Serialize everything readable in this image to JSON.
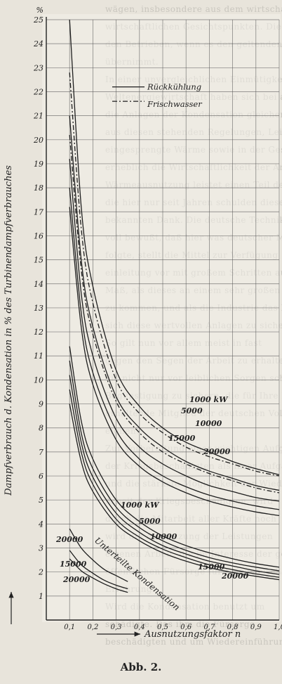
{
  "caption": "Abb. 2.",
  "background_text": [
    "wägen, insbesondere aus dem wirtschaftlichen",
    "wirtschaftlichen Gesichtspunkten. Die Ausnutzung",
    "den Betrieben, wenn es den geltenden Vorschriften",
    "übernimmt.",
    "In einer unvergleichlichen Einmütigkeit der",
    "Weltenergiewirtschaft haben sich bei allen Völkern",
    "die Anlagen der Kondensation gleichen Maßes",
    "aus diesen stehenden Regelungen, Leistungen",
    "eingesprengte Wärme sowie in der Gesamtheit",
    "erheblich die Wirtschaftlichkeit der Anlage",
    "Wärmeausnutzung leistet einen Teil der Wärme",
    "die hier nur seit Jahren schulden diesen Kreisen",
    "bekannten Dank. Die deutsche Technik ist sich",
    "voll bewußt, daß hier was deutscher Maßarbeit",
    "folgte, stellt die Mittel zur Verfügung",
    "einleitung vor mit großem Schritten auch",
    "Maß, als dieses an einem sehr großen Teil",
    "zu kommen, und als die Industrie das Erreichte",
    "sich diese wertvollen Anlagen zu sichern",
    "So gilt nun vor allem meist in fast",
    "gegen den Segen der Arbeit zu erhalten",
    "die nicht nur vor leiblichen Sorgen schützen",
    "Begünstigung zu sichern, die für Ihre Leistungen",
    "erhaltende Mitglied der deutschen Volksgemeinschaft",
    "eignen.",
    "Zur Vorbereitung einer wichtigen Aufgabe",
    "der Kriegsbeschädigten als ihrer Aufgabe",
    "und die stärkste Möglichkeit der Wiederherstellung",
    "Arbeit der Kriegsbeschädigten, wird",
    "durch die Mitarbeit aller Kräfte noch",
    "wird die Ausnutzung der Leistungen",
    "eigenen Arbeit, die im Interesse der gesamten",
    "öffentlichen Fürsorge für Kriegsbeschädigte",
    "Erfahrung",
    "Wird die Kondensation benutzt um",
    "schädigte. Das ihm die Fürsorge",
    "beschädigten und um Wiedereinführung"
  ],
  "chart_data": {
    "type": "line",
    "title": "",
    "ylabel": "Dampfverbrauch d. Kondensation in % des Turbinendampfverbrauches",
    "ylabel_unit": "%",
    "xlabel": "Ausnutzungsfaktor n",
    "xlim": [
      0,
      1.0
    ],
    "ylim": [
      0,
      25
    ],
    "grid": true,
    "x_ticks": [
      0.1,
      0.2,
      0.3,
      0.4,
      0.5,
      0.6,
      0.7,
      0.8,
      0.9,
      1.0
    ],
    "x_tick_labels": [
      "0,1",
      "0,2",
      "0,3",
      "0,4",
      "0,5",
      "0,6",
      "0,7",
      "0,8",
      "0,9",
      "1,0"
    ],
    "y_ticks": [
      0,
      1,
      2,
      3,
      4,
      5,
      6,
      7,
      8,
      9,
      10,
      11,
      12,
      13,
      14,
      15,
      16,
      17,
      18,
      19,
      20,
      21,
      22,
      23,
      24,
      25
    ],
    "legend": {
      "placement": "top-right",
      "entries": [
        {
          "label": "Rückkühlung",
          "style": "solid"
        },
        {
          "label": "Frischwasser",
          "style": "dash-dot"
        }
      ]
    },
    "annotations": [
      {
        "text": "Unterteilte Kondensation"
      }
    ],
    "series": [
      {
        "name": "1000 kW",
        "group": "upper",
        "style": "solid",
        "x": [
          0.1,
          0.15,
          0.2,
          0.3,
          0.4,
          0.5,
          0.6,
          0.7,
          0.8,
          0.9,
          1.0
        ],
        "y": [
          25.0,
          17.2,
          13.9,
          10.4,
          8.9,
          8.0,
          7.4,
          7.0,
          6.6,
          6.3,
          6.05
        ]
      },
      {
        "name": "1000 kW",
        "group": "upper",
        "style": "dash-dot",
        "x": [
          0.1,
          0.15,
          0.2,
          0.3,
          0.4,
          0.5,
          0.6,
          0.7,
          0.8,
          0.9,
          1.0
        ],
        "y": [
          22.8,
          16.3,
          13.2,
          10.0,
          8.6,
          7.8,
          7.2,
          6.8,
          6.5,
          6.2,
          6.0
        ]
      },
      {
        "name": "5000",
        "group": "upper",
        "style": "solid",
        "x": [
          0.1,
          0.15,
          0.2,
          0.3,
          0.4,
          0.5,
          0.6,
          0.7,
          0.8,
          0.9,
          1.0
        ],
        "y": [
          21.0,
          15.0,
          12.2,
          9.3,
          8.0,
          7.2,
          6.6,
          6.2,
          5.9,
          5.6,
          5.4
        ]
      },
      {
        "name": "5000",
        "group": "upper",
        "style": "dash-dot",
        "x": [
          0.1,
          0.15,
          0.2,
          0.3,
          0.4,
          0.5,
          0.6,
          0.7,
          0.8,
          0.9,
          1.0
        ],
        "y": [
          20.2,
          14.6,
          11.9,
          9.1,
          7.8,
          7.0,
          6.5,
          6.1,
          5.8,
          5.5,
          5.3
        ]
      },
      {
        "name": "10000",
        "group": "upper",
        "style": "solid",
        "x": [
          0.1,
          0.15,
          0.2,
          0.3,
          0.4,
          0.5,
          0.6,
          0.7,
          0.8,
          0.9,
          1.0
        ],
        "y": [
          19.2,
          13.6,
          11.0,
          8.4,
          7.2,
          6.5,
          6.0,
          5.6,
          5.35,
          5.1,
          4.95
        ]
      },
      {
        "name": "15000",
        "group": "upper",
        "style": "solid",
        "x": [
          0.1,
          0.15,
          0.2,
          0.3,
          0.4,
          0.5,
          0.6,
          0.7,
          0.8,
          0.9,
          1.0
        ],
        "y": [
          18.0,
          12.8,
          10.3,
          7.9,
          6.7,
          6.0,
          5.55,
          5.2,
          4.95,
          4.75,
          4.6
        ]
      },
      {
        "name": "20000",
        "group": "upper",
        "style": "solid",
        "x": [
          0.1,
          0.15,
          0.2,
          0.3,
          0.4,
          0.5,
          0.6,
          0.7,
          0.8,
          0.9,
          1.0
        ],
        "y": [
          17.2,
          12.2,
          9.8,
          7.5,
          6.4,
          5.75,
          5.3,
          4.95,
          4.7,
          4.5,
          4.35
        ]
      },
      {
        "name": "1000 kW",
        "group": "lower",
        "style": "solid",
        "x": [
          0.1,
          0.15,
          0.2,
          0.3,
          0.4,
          0.5,
          0.6,
          0.7,
          0.8,
          0.9,
          1.0
        ],
        "y": [
          11.4,
          8.3,
          6.7,
          5.0,
          4.1,
          3.5,
          3.1,
          2.8,
          2.55,
          2.35,
          2.2
        ]
      },
      {
        "name": "5000",
        "group": "lower",
        "style": "solid",
        "x": [
          0.1,
          0.15,
          0.2,
          0.3,
          0.4,
          0.5,
          0.6,
          0.7,
          0.8,
          0.9,
          1.0
        ],
        "y": [
          10.8,
          7.8,
          6.3,
          4.7,
          3.85,
          3.3,
          2.9,
          2.6,
          2.38,
          2.2,
          2.05
        ]
      },
      {
        "name": "10000",
        "group": "lower",
        "style": "solid",
        "x": [
          0.1,
          0.15,
          0.2,
          0.3,
          0.4,
          0.5,
          0.6,
          0.7,
          0.8,
          0.9,
          1.0
        ],
        "y": [
          10.2,
          7.4,
          5.95,
          4.45,
          3.65,
          3.1,
          2.75,
          2.45,
          2.25,
          2.05,
          1.9
        ]
      },
      {
        "name": "15000",
        "group": "lower",
        "style": "solid",
        "x": [
          0.1,
          0.15,
          0.2,
          0.3,
          0.4,
          0.5,
          0.6,
          0.7,
          0.8,
          0.9,
          1.0
        ],
        "y": [
          9.6,
          7.0,
          5.65,
          4.2,
          3.45,
          2.95,
          2.6,
          2.3,
          2.1,
          1.92,
          1.78
        ]
      },
      {
        "name": "20000",
        "group": "lower",
        "style": "solid",
        "x": [
          0.1,
          0.15,
          0.2,
          0.3,
          0.4,
          0.5,
          0.6,
          0.7,
          0.8,
          0.9,
          1.0
        ],
        "y": [
          9.0,
          6.6,
          5.35,
          4.0,
          3.3,
          2.8,
          2.45,
          2.18,
          1.98,
          1.82,
          1.68
        ]
      },
      {
        "name": "20000",
        "group": "unterteilt",
        "style": "solid",
        "x": [
          0.1,
          0.15,
          0.2,
          0.25,
          0.3,
          0.35
        ],
        "y": [
          3.8,
          3.0,
          2.5,
          2.1,
          1.85,
          1.6
        ]
      },
      {
        "name": "15000",
        "group": "unterteilt",
        "style": "solid",
        "x": [
          0.1,
          0.15,
          0.2,
          0.25,
          0.3,
          0.35
        ],
        "y": [
          2.9,
          2.3,
          1.95,
          1.65,
          1.45,
          1.3
        ]
      },
      {
        "name": "20000",
        "group": "unterteilt",
        "style": "solid",
        "x": [
          0.1,
          0.15,
          0.2,
          0.25,
          0.3,
          0.35
        ],
        "y": [
          2.55,
          2.05,
          1.75,
          1.5,
          1.3,
          1.15
        ]
      }
    ],
    "curve_labels": [
      {
        "text": "1000 kW",
        "group": "upper"
      },
      {
        "text": "5000",
        "group": "upper"
      },
      {
        "text": "10000",
        "group": "upper"
      },
      {
        "text": "15000",
        "group": "upper"
      },
      {
        "text": "20000",
        "group": "upper"
      },
      {
        "text": "1000 kW",
        "group": "lower"
      },
      {
        "text": "5000",
        "group": "lower"
      },
      {
        "text": "10000",
        "group": "lower"
      },
      {
        "text": "15000",
        "group": "lower"
      },
      {
        "text": "20000",
        "group": "lower"
      },
      {
        "text": "20000",
        "group": "unterteilt"
      },
      {
        "text": "15000",
        "group": "unterteilt"
      },
      {
        "text": "20000",
        "group": "unterteilt"
      }
    ]
  }
}
